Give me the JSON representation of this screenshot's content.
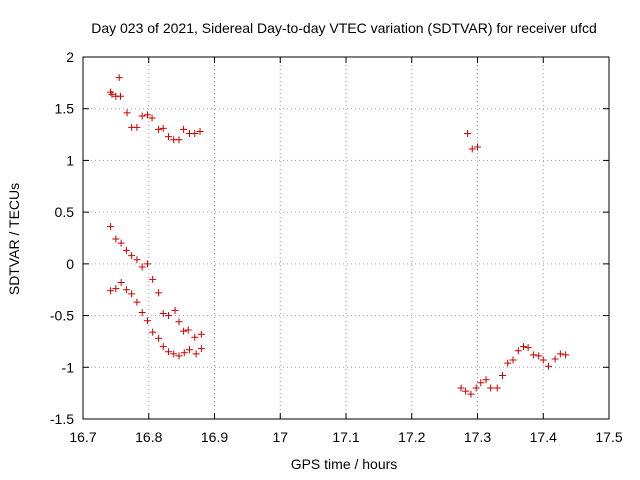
{
  "chart_data": {
    "type": "scatter",
    "title": "Day 023 of 2021, Sidereal Day-to-day VTEC variation (SDTVAR) for receiver ufcd",
    "xlabel": "GPS time / hours",
    "ylabel": "SDTVAR / TECUs",
    "xlim": [
      16.7,
      17.5
    ],
    "ylim": [
      -1.5,
      2
    ],
    "xticks": [
      16.7,
      16.8,
      16.9,
      17,
      17.1,
      17.2,
      17.3,
      17.4,
      17.5
    ],
    "xtick_labels": [
      "16.7",
      "16.8",
      "16.9",
      "17",
      "17.1",
      "17.2",
      "17.3",
      "17.4",
      "17.5"
    ],
    "yticks": [
      -1.5,
      -1,
      -0.5,
      0,
      0.5,
      1,
      1.5,
      2
    ],
    "ytick_labels": [
      "-1.5",
      "-1",
      "-0.5",
      "0",
      "0.5",
      "1",
      "1.5",
      "2"
    ],
    "grid": true,
    "marker": "+",
    "color": "#cc0000",
    "series": [
      {
        "name": "upper-left group",
        "points": [
          [
            16.742,
            1.66
          ],
          [
            16.744,
            1.64
          ],
          [
            16.75,
            1.62
          ],
          [
            16.755,
            1.8
          ],
          [
            16.757,
            1.62
          ],
          [
            16.767,
            1.46
          ],
          [
            16.774,
            1.32
          ],
          [
            16.782,
            1.32
          ],
          [
            16.79,
            1.43
          ],
          [
            16.798,
            1.44
          ],
          [
            16.805,
            1.41
          ],
          [
            16.815,
            1.3
          ],
          [
            16.822,
            1.31
          ],
          [
            16.83,
            1.23
          ],
          [
            16.838,
            1.2
          ],
          [
            16.846,
            1.2
          ],
          [
            16.853,
            1.3
          ],
          [
            16.862,
            1.26
          ],
          [
            16.87,
            1.26
          ],
          [
            16.878,
            1.28
          ]
        ]
      },
      {
        "name": "upper-right group",
        "points": [
          [
            17.285,
            1.26
          ],
          [
            17.292,
            1.11
          ],
          [
            17.3,
            1.13
          ]
        ]
      },
      {
        "name": "middle descending group",
        "points": [
          [
            16.742,
            0.36
          ],
          [
            16.75,
            0.24
          ],
          [
            16.758,
            0.2
          ],
          [
            16.766,
            0.13
          ],
          [
            16.774,
            0.08
          ],
          [
            16.782,
            0.04
          ],
          [
            16.79,
            -0.03
          ],
          [
            16.798,
            0.0
          ],
          [
            16.806,
            -0.15
          ],
          [
            16.815,
            -0.28
          ],
          [
            16.822,
            -0.48
          ],
          [
            16.83,
            -0.5
          ],
          [
            16.84,
            -0.45
          ],
          [
            16.846,
            -0.56
          ],
          [
            16.853,
            -0.65
          ],
          [
            16.86,
            -0.64
          ],
          [
            16.87,
            -0.71
          ],
          [
            16.88,
            -0.68
          ]
        ]
      },
      {
        "name": "lower-left group",
        "points": [
          [
            16.742,
            -0.26
          ],
          [
            16.75,
            -0.24
          ],
          [
            16.758,
            -0.18
          ],
          [
            16.766,
            -0.25
          ],
          [
            16.774,
            -0.29
          ],
          [
            16.782,
            -0.37
          ],
          [
            16.79,
            -0.47
          ],
          [
            16.798,
            -0.55
          ],
          [
            16.806,
            -0.66
          ],
          [
            16.815,
            -0.72
          ],
          [
            16.822,
            -0.8
          ],
          [
            16.83,
            -0.85
          ],
          [
            16.838,
            -0.87
          ],
          [
            16.846,
            -0.89
          ],
          [
            16.854,
            -0.86
          ],
          [
            16.862,
            -0.83
          ],
          [
            16.872,
            -0.87
          ],
          [
            16.88,
            -0.82
          ]
        ]
      },
      {
        "name": "lower-right group",
        "points": [
          [
            17.275,
            -1.2
          ],
          [
            17.282,
            -1.23
          ],
          [
            17.29,
            -1.26
          ],
          [
            17.298,
            -1.2
          ],
          [
            17.305,
            -1.15
          ],
          [
            17.313,
            -1.12
          ],
          [
            17.32,
            -1.2
          ],
          [
            17.33,
            -1.2
          ],
          [
            17.338,
            -1.08
          ],
          [
            17.346,
            -0.96
          ],
          [
            17.354,
            -0.93
          ],
          [
            17.362,
            -0.84
          ],
          [
            17.37,
            -0.8
          ],
          [
            17.377,
            -0.81
          ],
          [
            17.385,
            -0.88
          ],
          [
            17.393,
            -0.89
          ],
          [
            17.4,
            -0.93
          ],
          [
            17.408,
            -0.99
          ],
          [
            17.418,
            -0.92
          ],
          [
            17.426,
            -0.87
          ],
          [
            17.434,
            -0.88
          ]
        ]
      }
    ]
  }
}
